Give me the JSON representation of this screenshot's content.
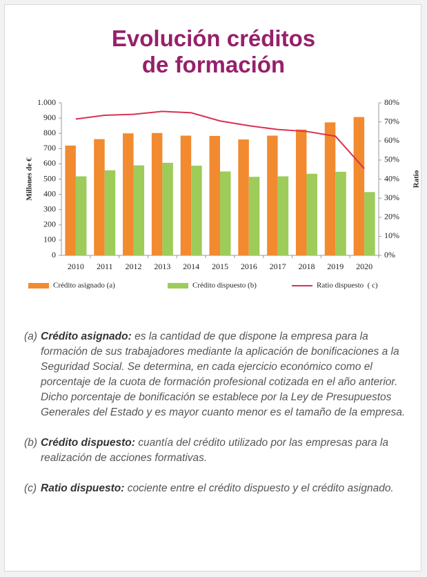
{
  "chart_data": {
    "type": "bar",
    "title": "Evolución créditos de formación",
    "ylabel": "Millones de €",
    "y2label": "Ratio",
    "categories": [
      "2010",
      "2011",
      "2012",
      "2013",
      "2014",
      "2015",
      "2016",
      "2017",
      "2018",
      "2019",
      "2020"
    ],
    "series": [
      {
        "name": "Crédito asignado (a)",
        "type": "bar",
        "color": "#f28a30",
        "values": [
          720,
          762,
          800,
          802,
          785,
          783,
          760,
          785,
          825,
          872,
          907
        ]
      },
      {
        "name": "Crédito dispuesto (b)",
        "type": "bar",
        "color": "#9dcc5a",
        "values": [
          518,
          558,
          590,
          607,
          588,
          550,
          515,
          518,
          535,
          548,
          415
        ]
      },
      {
        "name": "Ratio dispuesto  ( c)",
        "type": "line",
        "axis": "y2",
        "color": "#d9304f",
        "values": [
          71.5,
          73.5,
          74,
          75.5,
          74.8,
          70.5,
          68,
          66,
          65,
          62.5,
          45.5
        ]
      }
    ],
    "ylim": [
      0,
      1000
    ],
    "yticks": [
      0,
      100,
      200,
      300,
      400,
      500,
      600,
      700,
      800,
      900,
      {
        "value": 1000,
        "label": "1.000"
      }
    ],
    "y2lim": [
      0,
      80
    ],
    "y2ticks": [
      {
        "value": 0,
        "label": "0%"
      },
      {
        "value": 10,
        "label": "10%"
      },
      {
        "value": 20,
        "label": "20%"
      },
      {
        "value": 30,
        "label": "30%"
      },
      {
        "value": 40,
        "label": "40%"
      },
      {
        "value": 50,
        "label": "50%"
      },
      {
        "value": 60,
        "label": "60%"
      },
      {
        "value": 70,
        "label": "70%"
      },
      {
        "value": 80,
        "label": "80%"
      }
    ],
    "grid": false,
    "legend": "bottom"
  },
  "notes": [
    {
      "marker": "(a)",
      "term": "Crédito asignado:",
      "text": "es la cantidad de que dispone la empresa para la formación de sus trabajadores mediante la aplicación de bonificaciones a la Seguridad Social. Se determina, en cada ejercicio económico como el porcentaje de la cuota de formación profesional cotizada en el año anterior. Dicho porcentaje de bonificación se establece por la Ley de Presupuestos Generales del Estado y es mayor cuanto menor es el tamaño de la empresa."
    },
    {
      "marker": "(b)",
      "term": "Crédito dispuesto:",
      "text": "cuantía del crédito utilizado por las empresas para la realización de acciones formativas."
    },
    {
      "marker": "(c)",
      "term": "Ratio dispuesto:",
      "text": "cociente entre el crédito dispuesto y el crédito asignado."
    }
  ]
}
